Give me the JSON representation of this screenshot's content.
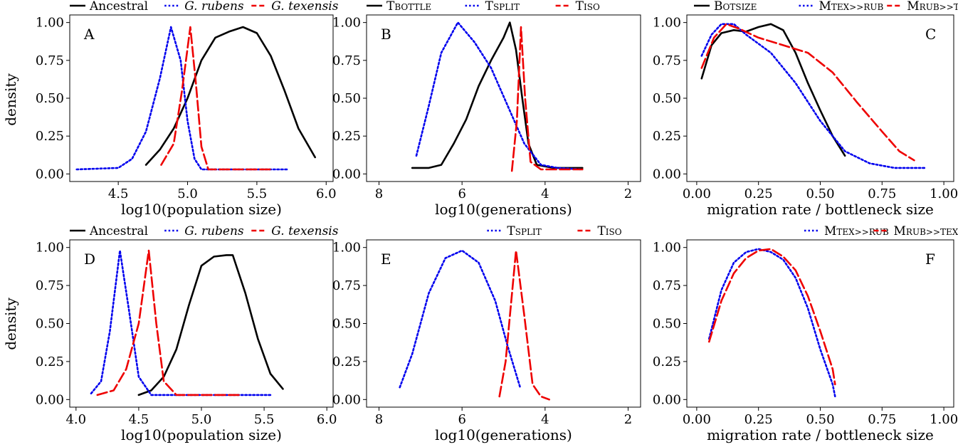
{
  "figure": {
    "ylabel_top": "density",
    "ylabel_bottom": "density"
  },
  "chart_data": [
    {
      "id": "A",
      "type": "line",
      "letter": "A",
      "xlabel": "log10(population size)",
      "ylabel": "density",
      "xlim": [
        4.15,
        6.05
      ],
      "ylim": [
        -0.05,
        1.05
      ],
      "xticks": [
        4.5,
        5.0,
        5.5,
        6.0
      ],
      "xtick_labels": [
        "4.5",
        "5.0",
        "5.5",
        "6.0"
      ],
      "yticks": [
        0,
        0.25,
        0.5,
        0.75,
        1
      ],
      "ytick_labels": [
        "0.00",
        "0.25",
        "0.50",
        "0.75",
        "1.00"
      ],
      "legend": "top",
      "series": [
        {
          "name": "Ancestral",
          "style": "solid",
          "color": "#000000",
          "points": [
            [
              4.7,
              0.06
            ],
            [
              4.8,
              0.16
            ],
            [
              4.9,
              0.3
            ],
            [
              5.0,
              0.5
            ],
            [
              5.1,
              0.75
            ],
            [
              5.2,
              0.9
            ],
            [
              5.3,
              0.94
            ],
            [
              5.4,
              0.97
            ],
            [
              5.5,
              0.93
            ],
            [
              5.6,
              0.78
            ],
            [
              5.7,
              0.55
            ],
            [
              5.8,
              0.3
            ],
            [
              5.92,
              0.11
            ]
          ]
        },
        {
          "name": "G. rubens",
          "style": "dotted",
          "color": "#0000ee",
          "italic": true,
          "points": [
            [
              4.2,
              0.03
            ],
            [
              4.5,
              0.04
            ],
            [
              4.6,
              0.1
            ],
            [
              4.7,
              0.28
            ],
            [
              4.8,
              0.63
            ],
            [
              4.88,
              0.97
            ],
            [
              4.95,
              0.75
            ],
            [
              5.0,
              0.35
            ],
            [
              5.05,
              0.1
            ],
            [
              5.1,
              0.03
            ],
            [
              5.4,
              0.03
            ],
            [
              5.73,
              0.03
            ]
          ]
        },
        {
          "name": "G. texensis",
          "style": "dashed",
          "color": "#ee0000",
          "italic": true,
          "points": [
            [
              4.81,
              0.06
            ],
            [
              4.9,
              0.2
            ],
            [
              4.96,
              0.55
            ],
            [
              5.02,
              0.97
            ],
            [
              5.06,
              0.6
            ],
            [
              5.1,
              0.18
            ],
            [
              5.15,
              0.03
            ],
            [
              5.4,
              0.03
            ],
            [
              5.62,
              0.03
            ]
          ]
        }
      ]
    },
    {
      "id": "B",
      "type": "line",
      "letter": "B",
      "xlabel": "log10(generations)",
      "ylabel": "",
      "xlim": [
        8.3,
        1.7
      ],
      "ylim": [
        -0.05,
        1.05
      ],
      "xticks": [
        8,
        6,
        4,
        2
      ],
      "xtick_labels": [
        "8",
        "6",
        "4",
        "2"
      ],
      "yticks": [
        0,
        0.25,
        0.5,
        0.75,
        1
      ],
      "ytick_labels": [
        "0.00",
        "0.25",
        "0.50",
        "0.75",
        "1.00"
      ],
      "legend": "top",
      "series": [
        {
          "name": "TBOTTLE",
          "style": "solid",
          "color": "#000000",
          "smallcaps": true,
          "points": [
            [
              7.2,
              0.04
            ],
            [
              6.8,
              0.04
            ],
            [
              6.5,
              0.06
            ],
            [
              6.2,
              0.2
            ],
            [
              5.9,
              0.36
            ],
            [
              5.6,
              0.58
            ],
            [
              5.3,
              0.75
            ],
            [
              5.0,
              0.9
            ],
            [
              4.85,
              1.0
            ],
            [
              4.7,
              0.82
            ],
            [
              4.55,
              0.5
            ],
            [
              4.4,
              0.2
            ],
            [
              4.2,
              0.06
            ],
            [
              3.8,
              0.04
            ],
            [
              3.1,
              0.04
            ]
          ]
        },
        {
          "name": "TSPLIT",
          "style": "dotted",
          "color": "#0000ee",
          "smallcaps": true,
          "points": [
            [
              7.1,
              0.12
            ],
            [
              6.8,
              0.45
            ],
            [
              6.5,
              0.8
            ],
            [
              6.1,
              1.0
            ],
            [
              5.7,
              0.87
            ],
            [
              5.3,
              0.7
            ],
            [
              4.9,
              0.45
            ],
            [
              4.5,
              0.2
            ],
            [
              4.1,
              0.06
            ],
            [
              3.7,
              0.04
            ],
            [
              3.1,
              0.03
            ]
          ]
        },
        {
          "name": "TISO",
          "style": "dashed",
          "color": "#ee0000",
          "smallcaps": true,
          "points": [
            [
              4.8,
              0.02
            ],
            [
              4.68,
              0.35
            ],
            [
              4.58,
              0.97
            ],
            [
              4.48,
              0.5
            ],
            [
              4.35,
              0.08
            ],
            [
              4.1,
              0.03
            ],
            [
              3.1,
              0.03
            ]
          ]
        }
      ]
    },
    {
      "id": "C",
      "type": "line",
      "letter": "C",
      "xlabel": "migration rate / bottleneck size",
      "ylabel": "",
      "xlim": [
        -0.04,
        1.04
      ],
      "ylim": [
        -0.05,
        1.05
      ],
      "xticks": [
        0,
        0.25,
        0.5,
        0.75,
        1.0
      ],
      "xtick_labels": [
        "0.00",
        "0.25",
        "0.50",
        "0.75",
        "1.00"
      ],
      "yticks": [
        0,
        0.25,
        0.5,
        0.75,
        1
      ],
      "ytick_labels": [
        "0.00",
        "0.25",
        "0.50",
        "0.75",
        "1.00"
      ],
      "legend": "top",
      "series": [
        {
          "name": "BOTSIZE",
          "style": "solid",
          "color": "#000000",
          "smallcaps": true,
          "points": [
            [
              0.02,
              0.63
            ],
            [
              0.06,
              0.85
            ],
            [
              0.1,
              0.93
            ],
            [
              0.15,
              0.95
            ],
            [
              0.2,
              0.94
            ],
            [
              0.25,
              0.97
            ],
            [
              0.3,
              0.99
            ],
            [
              0.35,
              0.95
            ],
            [
              0.4,
              0.8
            ],
            [
              0.45,
              0.6
            ],
            [
              0.5,
              0.42
            ],
            [
              0.55,
              0.25
            ],
            [
              0.6,
              0.12
            ]
          ]
        },
        {
          "name": "MTEX>>RUB",
          "style": "dotted",
          "color": "#0000ee",
          "smallcaps": true,
          "points": [
            [
              0.02,
              0.78
            ],
            [
              0.06,
              0.92
            ],
            [
              0.1,
              0.99
            ],
            [
              0.15,
              0.99
            ],
            [
              0.2,
              0.92
            ],
            [
              0.3,
              0.8
            ],
            [
              0.4,
              0.6
            ],
            [
              0.5,
              0.35
            ],
            [
              0.6,
              0.15
            ],
            [
              0.7,
              0.07
            ],
            [
              0.8,
              0.04
            ],
            [
              0.93,
              0.04
            ]
          ]
        },
        {
          "name": "MRUB>>TEX",
          "style": "dashed",
          "color": "#ee0000",
          "smallcaps": true,
          "points": [
            [
              0.02,
              0.7
            ],
            [
              0.07,
              0.9
            ],
            [
              0.12,
              0.99
            ],
            [
              0.17,
              0.96
            ],
            [
              0.25,
              0.9
            ],
            [
              0.35,
              0.85
            ],
            [
              0.45,
              0.8
            ],
            [
              0.55,
              0.67
            ],
            [
              0.65,
              0.47
            ],
            [
              0.75,
              0.28
            ],
            [
              0.82,
              0.15
            ],
            [
              0.88,
              0.09
            ]
          ]
        }
      ]
    },
    {
      "id": "D",
      "type": "line",
      "letter": "D",
      "xlabel": "log10(population size)",
      "ylabel": "density",
      "xlim": [
        3.95,
        6.05
      ],
      "ylim": [
        -0.05,
        1.05
      ],
      "xticks": [
        4.0,
        4.5,
        5.0,
        5.5,
        6.0
      ],
      "xtick_labels": [
        "4.0",
        "4.5",
        "5.0",
        "5.5",
        "6.0"
      ],
      "yticks": [
        0,
        0.25,
        0.5,
        0.75,
        1
      ],
      "ytick_labels": [
        "0.00",
        "0.25",
        "0.50",
        "0.75",
        "1.00"
      ],
      "legend": "top",
      "series": [
        {
          "name": "Ancestral",
          "style": "solid",
          "color": "#000000",
          "points": [
            [
              4.5,
              0.03
            ],
            [
              4.6,
              0.06
            ],
            [
              4.7,
              0.15
            ],
            [
              4.8,
              0.33
            ],
            [
              4.9,
              0.62
            ],
            [
              5.0,
              0.88
            ],
            [
              5.1,
              0.94
            ],
            [
              5.2,
              0.95
            ],
            [
              5.25,
              0.95
            ],
            [
              5.35,
              0.7
            ],
            [
              5.45,
              0.4
            ],
            [
              5.55,
              0.17
            ],
            [
              5.65,
              0.07
            ]
          ]
        },
        {
          "name": "G. rubens",
          "style": "dotted",
          "color": "#0000ee",
          "italic": true,
          "points": [
            [
              4.12,
              0.04
            ],
            [
              4.2,
              0.12
            ],
            [
              4.27,
              0.45
            ],
            [
              4.35,
              0.98
            ],
            [
              4.42,
              0.6
            ],
            [
              4.5,
              0.15
            ],
            [
              4.6,
              0.03
            ],
            [
              5.0,
              0.03
            ],
            [
              5.55,
              0.03
            ]
          ]
        },
        {
          "name": "G. texensis",
          "style": "dashed",
          "color": "#ee0000",
          "italic": true,
          "points": [
            [
              4.17,
              0.03
            ],
            [
              4.3,
              0.06
            ],
            [
              4.4,
              0.2
            ],
            [
              4.5,
              0.5
            ],
            [
              4.58,
              0.98
            ],
            [
              4.64,
              0.5
            ],
            [
              4.7,
              0.12
            ],
            [
              4.8,
              0.03
            ],
            [
              5.3,
              0.03
            ]
          ]
        }
      ]
    },
    {
      "id": "E",
      "type": "line",
      "letter": "E",
      "xlabel": "log10(generations)",
      "ylabel": "",
      "xlim": [
        8.3,
        1.7
      ],
      "ylim": [
        -0.05,
        1.05
      ],
      "xticks": [
        8,
        6,
        4,
        2
      ],
      "xtick_labels": [
        "8",
        "6",
        "4",
        "2"
      ],
      "yticks": [
        0,
        0.25,
        0.5,
        0.75,
        1
      ],
      "ytick_labels": [
        "0.00",
        "0.25",
        "0.50",
        "0.75",
        "1.00"
      ],
      "legend": "top",
      "series": [
        {
          "name": "TSPLIT",
          "style": "dotted",
          "color": "#0000ee",
          "smallcaps": true,
          "points": [
            [
              7.5,
              0.08
            ],
            [
              7.2,
              0.3
            ],
            [
              6.8,
              0.7
            ],
            [
              6.4,
              0.93
            ],
            [
              6.0,
              0.98
            ],
            [
              5.6,
              0.9
            ],
            [
              5.2,
              0.65
            ],
            [
              4.9,
              0.35
            ],
            [
              4.6,
              0.08
            ]
          ]
        },
        {
          "name": "TISO",
          "style": "dashed",
          "color": "#ee0000",
          "smallcaps": true,
          "points": [
            [
              5.1,
              0.02
            ],
            [
              4.95,
              0.25
            ],
            [
              4.7,
              0.98
            ],
            [
              4.5,
              0.55
            ],
            [
              4.3,
              0.1
            ],
            [
              4.1,
              0.02
            ],
            [
              3.9,
              0.0
            ]
          ]
        }
      ]
    },
    {
      "id": "F",
      "type": "line",
      "letter": "F",
      "xlabel": "migration rate / bottleneck size",
      "ylabel": "",
      "xlim": [
        -0.04,
        1.04
      ],
      "ylim": [
        -0.05,
        1.05
      ],
      "xticks": [
        0,
        0.25,
        0.5,
        0.75,
        1.0
      ],
      "xtick_labels": [
        "0.00",
        "0.25",
        "0.50",
        "0.75",
        "1.00"
      ],
      "yticks": [
        0,
        0.25,
        0.5,
        0.75,
        1
      ],
      "ytick_labels": [
        "0.00",
        "0.25",
        "0.50",
        "0.75",
        "1.00"
      ],
      "legend": "top-right",
      "series": [
        {
          "name": "MTEX>>RUB",
          "style": "dotted",
          "color": "#0000ee",
          "smallcaps": true,
          "points": [
            [
              0.05,
              0.4
            ],
            [
              0.1,
              0.72
            ],
            [
              0.15,
              0.9
            ],
            [
              0.2,
              0.97
            ],
            [
              0.25,
              0.99
            ],
            [
              0.3,
              0.97
            ],
            [
              0.35,
              0.92
            ],
            [
              0.4,
              0.8
            ],
            [
              0.45,
              0.6
            ],
            [
              0.5,
              0.33
            ],
            [
              0.55,
              0.1
            ],
            [
              0.56,
              0.02
            ]
          ]
        },
        {
          "name": "MRUB>>TEX",
          "style": "dashed",
          "color": "#ee0000",
          "smallcaps": true,
          "points": [
            [
              0.05,
              0.38
            ],
            [
              0.1,
              0.65
            ],
            [
              0.15,
              0.83
            ],
            [
              0.2,
              0.93
            ],
            [
              0.25,
              0.98
            ],
            [
              0.3,
              0.99
            ],
            [
              0.35,
              0.94
            ],
            [
              0.4,
              0.85
            ],
            [
              0.45,
              0.68
            ],
            [
              0.5,
              0.45
            ],
            [
              0.55,
              0.2
            ],
            [
              0.56,
              0.1
            ]
          ]
        }
      ]
    }
  ]
}
